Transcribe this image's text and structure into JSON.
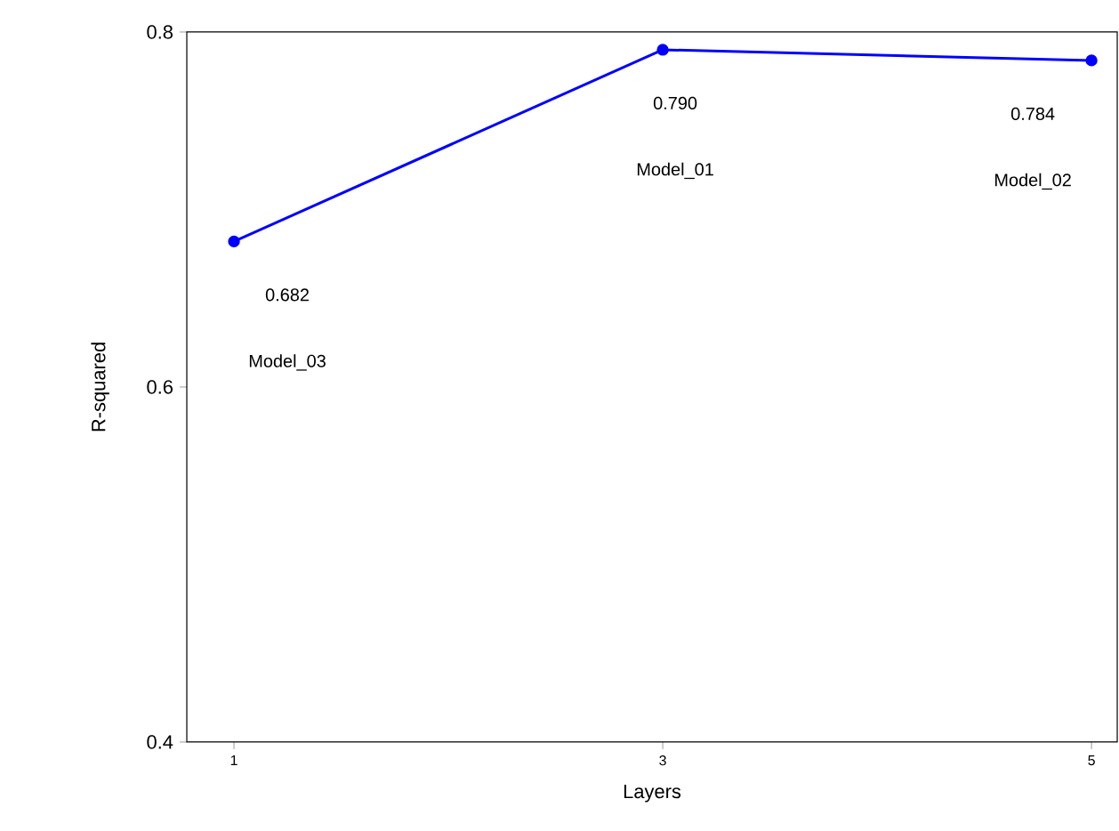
{
  "chart_data": {
    "type": "line",
    "xlabel": "Layers",
    "ylabel": "R-squared",
    "x": [
      1,
      3,
      5
    ],
    "series": [
      {
        "color": "#0000ff",
        "values": [
          0.682,
          0.79,
          0.784
        ],
        "value_labels": [
          "0.682",
          "0.790",
          "0.784"
        ]
      }
    ],
    "annotations": [
      "Model_03",
      "Model_01",
      "Model_02"
    ],
    "xlim": [
      0.78,
      5.12
    ],
    "ylim": [
      0.4,
      0.8
    ],
    "xticks": [
      1,
      3,
      5
    ],
    "yticks": [
      {
        "value": 0.4,
        "label": "0.4"
      },
      {
        "value": 0.6,
        "label": "0.6"
      },
      {
        "value": 0.8,
        "label": "0.8"
      }
    ],
    "grid": false,
    "marker": "circle",
    "line_style": "solid"
  }
}
